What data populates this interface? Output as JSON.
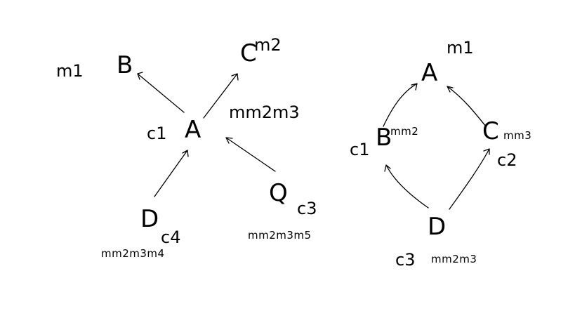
{
  "sketch": {
    "left_graph": {
      "nodes": {
        "A": "A",
        "B": "B",
        "C": "C",
        "D": "D",
        "Q": "Q"
      },
      "labels": {
        "B_left": "m1",
        "C_right": "m2",
        "A_right": "mm2m3",
        "A_left": "c1",
        "D_right": "c4",
        "D_bottom": "mm2m3m4",
        "Q_right": "c3",
        "Q_bottom": "mm2m3m5"
      }
    },
    "right_graph": {
      "nodes": {
        "A": "A",
        "B": "B",
        "C": "C",
        "D": "D"
      },
      "labels": {
        "A_top": "m1",
        "B_left": "c1",
        "B_right": "mm2",
        "C_right": "mm3",
        "C_bottom": "c2",
        "D_left": "c3",
        "D_right": "mm2m3"
      }
    }
  },
  "colors": {
    "ink": "#000000",
    "background": "#ffffff"
  }
}
